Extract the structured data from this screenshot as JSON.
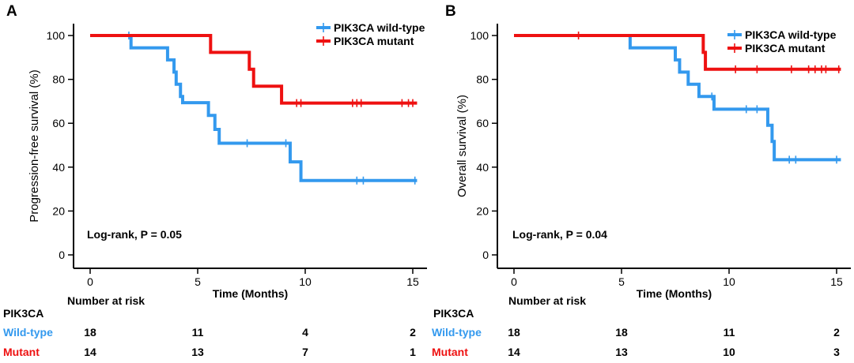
{
  "chart_data": [
    {
      "type": "line",
      "panel_label": "A",
      "ylabel": "Progression-free survival (%)",
      "xlabel": "Time (Months)",
      "xlim": [
        0,
        15.3
      ],
      "ylim": [
        0,
        100
      ],
      "xticks": [
        0,
        5,
        10,
        15
      ],
      "yticks": [
        0,
        20,
        40,
        60,
        80,
        100
      ],
      "legend_position": "top-right",
      "annotation": "Log-rank, P = 0.05",
      "series": [
        {
          "name": "PIK3CA wild-type",
          "color": "#3399ee",
          "steps": [
            [
              0,
              100
            ],
            [
              1.9,
              94.4
            ],
            [
              3.6,
              88.9
            ],
            [
              3.9,
              83.3
            ],
            [
              4,
              77.8
            ],
            [
              4.2,
              72.2
            ],
            [
              4.3,
              69.4
            ],
            [
              5.5,
              63.6
            ],
            [
              5.8,
              57.2
            ],
            [
              6,
              50.9
            ],
            [
              9.3,
              42.4
            ],
            [
              9.8,
              33.9
            ],
            [
              15.2,
              33.9
            ]
          ],
          "censored": [
            [
              1.8,
              100
            ],
            [
              7.3,
              50.9
            ],
            [
              9.1,
              50.9
            ],
            [
              12.4,
              33.9
            ],
            [
              12.7,
              33.9
            ],
            [
              15.1,
              33.9
            ]
          ]
        },
        {
          "name": "PIK3CA mutant",
          "color": "#ee1111",
          "steps": [
            [
              0,
              100
            ],
            [
              5.6,
              92.3
            ],
            [
              7.4,
              84.6
            ],
            [
              7.6,
              76.9
            ],
            [
              8.9,
              69.2
            ],
            [
              15.2,
              69.2
            ]
          ],
          "censored": [
            [
              9.6,
              69.2
            ],
            [
              9.8,
              69.2
            ],
            [
              12.2,
              69.2
            ],
            [
              12.4,
              69.2
            ],
            [
              12.6,
              69.2
            ],
            [
              14.5,
              69.2
            ],
            [
              14.8,
              69.2
            ],
            [
              15.0,
              69.2
            ]
          ]
        }
      ],
      "risk_table": {
        "title": "Number at risk",
        "group_header": "PIK3CA",
        "times": [
          0,
          5,
          10,
          15
        ],
        "rows": [
          {
            "label": "Wild-type",
            "color": "#3399ee",
            "values": [
              "18",
              "11",
              "4",
              "2"
            ]
          },
          {
            "label": "Mutant",
            "color": "#ee1111",
            "values": [
              "14",
              "13",
              "7",
              "1"
            ]
          }
        ]
      }
    },
    {
      "type": "line",
      "panel_label": "B",
      "ylabel": "Overall survival (%)",
      "xlabel": "Time (Months)",
      "xlim": [
        0,
        15.3
      ],
      "ylim": [
        0,
        100
      ],
      "xticks": [
        0,
        5,
        10,
        15
      ],
      "yticks": [
        0,
        20,
        40,
        60,
        80,
        100
      ],
      "legend_position": "top-right",
      "annotation": "Log-rank, P = 0.04",
      "series": [
        {
          "name": "PIK3CA wild-type",
          "color": "#3399ee",
          "steps": [
            [
              0,
              100
            ],
            [
              5.4,
              94.4
            ],
            [
              7.5,
              88.9
            ],
            [
              7.7,
              83.3
            ],
            [
              8.1,
              77.8
            ],
            [
              8.6,
              72.2
            ],
            [
              9.3,
              66.4
            ],
            [
              11.8,
              59.1
            ],
            [
              12,
              51.7
            ],
            [
              12.1,
              43.4
            ],
            [
              15.2,
              43.4
            ]
          ],
          "censored": [
            [
              9.2,
              72.2
            ],
            [
              10.8,
              66.4
            ],
            [
              11.3,
              66.4
            ],
            [
              12.8,
              43.4
            ],
            [
              13.1,
              43.4
            ],
            [
              15.0,
              43.4
            ]
          ]
        },
        {
          "name": "PIK3CA mutant",
          "color": "#ee1111",
          "steps": [
            [
              0,
              100
            ],
            [
              8.8,
              92.3
            ],
            [
              8.9,
              84.6
            ],
            [
              15.2,
              84.6
            ]
          ],
          "censored": [
            [
              3,
              100
            ],
            [
              10.3,
              84.6
            ],
            [
              11.3,
              84.6
            ],
            [
              12.9,
              84.6
            ],
            [
              13.7,
              84.6
            ],
            [
              14.0,
              84.6
            ],
            [
              14.3,
              84.6
            ],
            [
              14.5,
              84.6
            ],
            [
              15.1,
              84.6
            ]
          ]
        }
      ],
      "risk_table": {
        "title": "Number at risk",
        "group_header": "PIK3CA",
        "times": [
          0,
          5,
          10,
          15
        ],
        "rows": [
          {
            "label": "Wild-type",
            "color": "#3399ee",
            "values": [
              "18",
              "18",
              "11",
              "2"
            ]
          },
          {
            "label": "Mutant",
            "color": "#ee1111",
            "values": [
              "14",
              "13",
              "10",
              "3"
            ]
          }
        ]
      }
    }
  ]
}
